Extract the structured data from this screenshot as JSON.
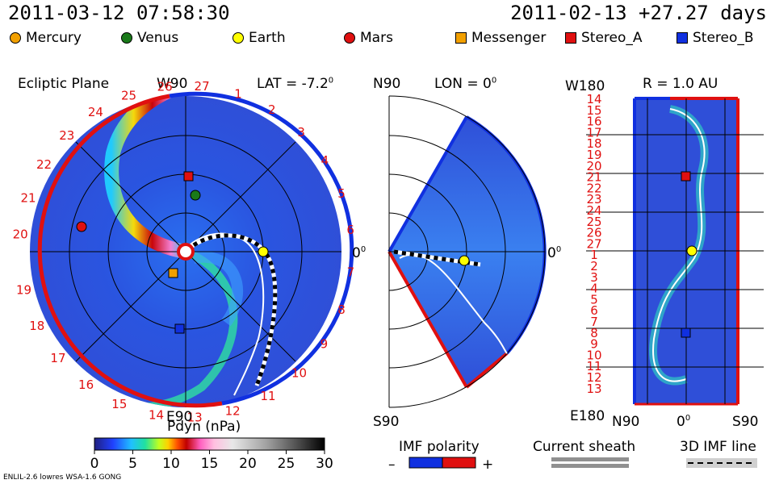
{
  "header": {
    "sim_time": "2011-03-12 07:58:30",
    "ref_time": "2011-02-13 +27.27 days"
  },
  "legend": [
    {
      "label": "Mercury",
      "marker": "circle",
      "color": "#f2a000"
    },
    {
      "label": "Venus",
      "marker": "circle",
      "color": "#1a7a1a"
    },
    {
      "label": "Earth",
      "marker": "circle",
      "color": "#ffff00"
    },
    {
      "label": "Mars",
      "marker": "circle",
      "color": "#e01010"
    },
    {
      "label": "Messenger",
      "marker": "square",
      "color": "#f2a000"
    },
    {
      "label": "Stereo_A",
      "marker": "square",
      "color": "#e01010"
    },
    {
      "label": "Stereo_B",
      "marker": "square",
      "color": "#1030e0"
    }
  ],
  "panel1": {
    "title": "Ecliptic Plane",
    "lat": "LAT = -7.2",
    "lat_deg": "0",
    "w90": "W90",
    "e90": "E90",
    "zero": "0",
    "zero_deg": "0",
    "days_top": [
      "20",
      "21",
      "22",
      "23",
      "24",
      "25",
      "26",
      "27"
    ],
    "days_right": [
      "1",
      "2",
      "3",
      "4",
      "5",
      "6"
    ],
    "days_left": [
      "19",
      "18",
      "17",
      "16",
      "15",
      "14",
      "13",
      "12",
      "11",
      "10",
      "9",
      "8",
      "7"
    ]
  },
  "panel2": {
    "n90": "N90",
    "lon": "LON = 0",
    "lon_deg": "0",
    "s90": "S90",
    "zero": "0",
    "zero_deg": "0"
  },
  "panel3": {
    "w180": "W180",
    "r": "R = 1.0 AU",
    "e180": "E180",
    "n90": "N90",
    "zero": "0",
    "zero_deg": "0",
    "s90": "S90",
    "days": [
      "14",
      "15",
      "16",
      "17",
      "18",
      "19",
      "20",
      "21",
      "22",
      "23",
      "24",
      "25",
      "26",
      "27",
      "1",
      "2",
      "3",
      "4",
      "5",
      "6",
      "7",
      "8",
      "9",
      "10",
      "11",
      "12",
      "13"
    ]
  },
  "colorbar": {
    "title": "Pdyn (nPa)",
    "ticks": [
      "0",
      "5",
      "10",
      "15",
      "20",
      "25",
      "30"
    ]
  },
  "imf": {
    "title": "IMF polarity",
    "minus": "–",
    "plus": "+"
  },
  "sheath": {
    "title": "Current sheath"
  },
  "imfline": {
    "title": "3D IMF line"
  },
  "footer": {
    "model": "ENLIL-2.6 lowres WSA-1.6 GONG"
  },
  "chart_data": {
    "type": "heatmap",
    "quantity": "Pdyn (nPa)",
    "colorbar_range": [
      0,
      30
    ],
    "colorbar_ticks": [
      0,
      5,
      10,
      15,
      20,
      25,
      30
    ],
    "panels": [
      "Ecliptic Plane",
      "LON = 0",
      "R = 1.0 AU"
    ],
    "time": "2011-03-12 07:58:30"
  }
}
